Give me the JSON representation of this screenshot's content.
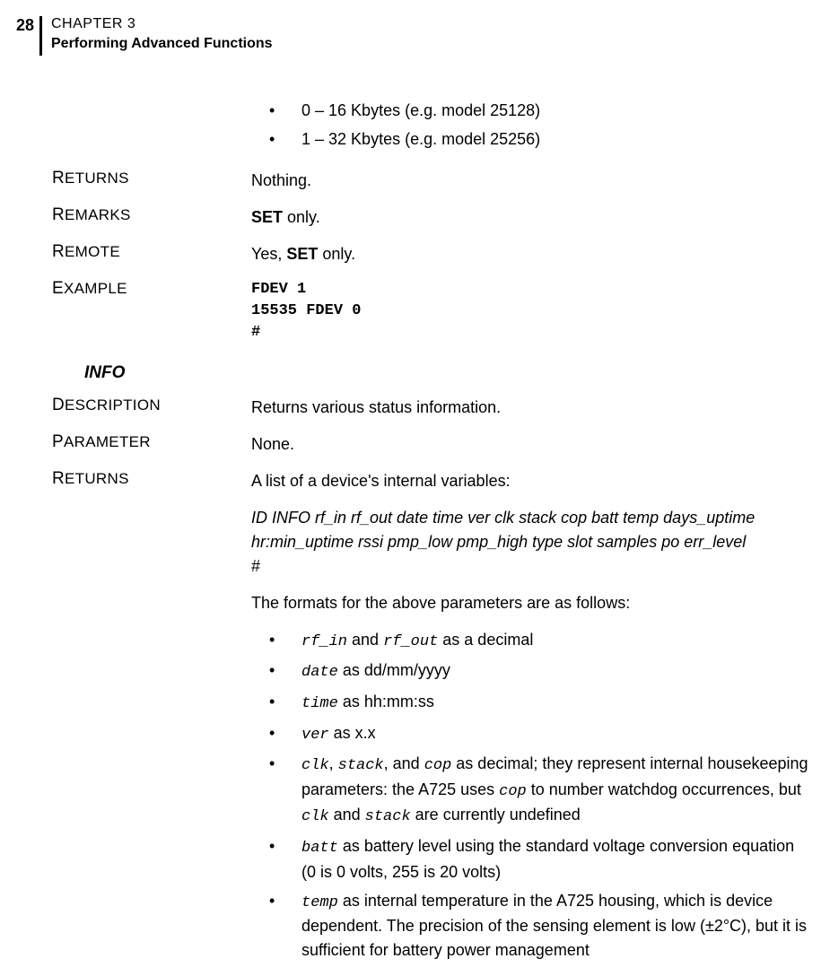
{
  "header": {
    "page_number": "28",
    "chapter": "CHAPTER 3",
    "title": "Performing Advanced Functions"
  },
  "top_bullets": [
    "0 – 16 Kbytes (e.g. model 25128)",
    "1 – 32 Kbytes (e.g. model 25256)"
  ],
  "rows": {
    "returns1_label_first": "R",
    "returns1_label_rest": "ETURNS",
    "returns1_value": "Nothing.",
    "remarks_label_first": "R",
    "remarks_label_rest": "EMARKS",
    "remarks_set": "SET",
    "remarks_tail": " only.",
    "remote_label_first": "R",
    "remote_label_rest": "EMOTE",
    "remote_pre": "Yes, ",
    "remote_set": "SET",
    "remote_tail": " only.",
    "example_label_first": "E",
    "example_label_rest": "XAMPLE",
    "example_code": "FDEV 1\n15535 FDEV 0\n#"
  },
  "info_heading": "INFO",
  "info": {
    "desc_label_first": "D",
    "desc_label_rest": "ESCRIPTION",
    "desc_value": "Returns various status information.",
    "param_label_first": "P",
    "param_label_rest": "ARAMETER",
    "param_value": "None.",
    "returns_label_first": "R",
    "returns_label_rest": "ETURNS",
    "returns_intro": "A list of a device's internal variables:",
    "returns_vars": "ID INFO rf_in rf_out date time ver clk stack cop batt temp days_uptime hr:min_uptime rssi pmp_low pmp_high type slot samples po err_level",
    "hash": "#",
    "returns_formats": "The formats for the above parameters are as follows:"
  },
  "format_items": {
    "i1_a": "rf_in",
    "i1_mid": " and ",
    "i1_b": "rf_out",
    "i1_tail": " as a decimal",
    "i2_a": "date",
    "i2_tail": " as dd/mm/yyyy",
    "i3_a": "time",
    "i3_tail": " as hh:mm:ss",
    "i4_a": "ver",
    "i4_tail": " as x.x",
    "i5_a": "clk",
    "i5_c1": ", ",
    "i5_b": "stack",
    "i5_c2": ", and ",
    "i5_c": "cop",
    "i5_mid": " as decimal; they represent internal housekeeping parameters: the A725 uses  ",
    "i5_d": "cop",
    "i5_mid2": " to number watchdog occurrences, but ",
    "i5_e": "clk",
    "i5_c3": " and ",
    "i5_f": "stack",
    "i5_tail": " are currently undefined",
    "i6_a": "batt",
    "i6_tail": " as battery level using the standard voltage conversion equation (0 is 0 volts, 255 is 20 volts)",
    "i7_a": "temp",
    "i7_tail": " as internal temperature in the A725 housing, which is device dependent. The precision of the sensing element is low (±2°C), but it is sufficient for battery power management"
  }
}
